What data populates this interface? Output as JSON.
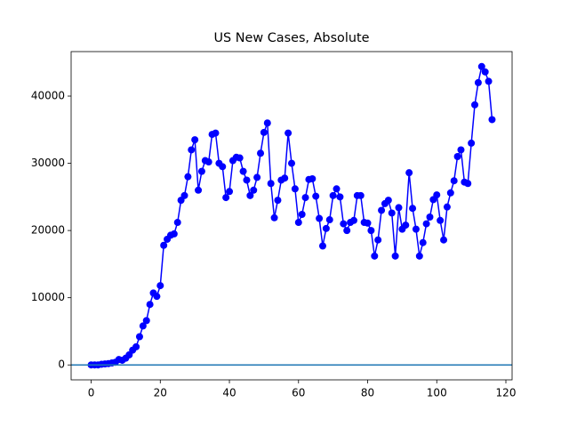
{
  "chart_data": {
    "type": "line",
    "title": "US New Cases, Absolute",
    "x": [
      0,
      1,
      2,
      3,
      4,
      5,
      6,
      7,
      8,
      9,
      10,
      11,
      12,
      13,
      14,
      15,
      16,
      17,
      18,
      19,
      20,
      21,
      22,
      23,
      24,
      25,
      26,
      27,
      28,
      29,
      30,
      31,
      32,
      33,
      34,
      35,
      36,
      37,
      38,
      39,
      40,
      41,
      42,
      43,
      44,
      45,
      46,
      47,
      48,
      49,
      50,
      51,
      52,
      53,
      54,
      55,
      56,
      57,
      58,
      59,
      60,
      61,
      62,
      63,
      64,
      65,
      66,
      67,
      68,
      69,
      70,
      71,
      72,
      73,
      74,
      75,
      76,
      77,
      78,
      79,
      80,
      81,
      82,
      83,
      84,
      85,
      86,
      87,
      88,
      89,
      90,
      91,
      92,
      93,
      94,
      95,
      96,
      97,
      98,
      99,
      100,
      101,
      102,
      103,
      104,
      105,
      106,
      107,
      108,
      109,
      110,
      111,
      112,
      113,
      114,
      115,
      116
    ],
    "series": [
      {
        "color": "#0000ff",
        "values": [
          0,
          0,
          0,
          100,
          150,
          200,
          300,
          400,
          800,
          700,
          1000,
          1500,
          2200,
          2700,
          4200,
          5800,
          6600,
          9000,
          10700,
          10200,
          11800,
          17800,
          18700,
          19300,
          19500,
          21200,
          24500,
          25200,
          28000,
          32000,
          33500,
          26000,
          28800,
          30400,
          30200,
          34300,
          34500,
          30000,
          29500,
          24900,
          25800,
          30400,
          30900,
          30800,
          28800,
          27500,
          25200,
          26000,
          27900,
          31500,
          34600,
          36000,
          27000,
          21900,
          24500,
          27500,
          27800,
          34500,
          30000,
          26200,
          21200,
          22400,
          24900,
          27600,
          27700,
          25100,
          21800,
          17700,
          20300,
          21600,
          25200,
          26200,
          25000,
          21000,
          20000,
          21200,
          21500,
          25200,
          25200,
          21200,
          21100,
          20000,
          16200,
          18600,
          23000,
          24000,
          24500,
          22600,
          16200,
          23400,
          20200,
          20800,
          28600,
          23300,
          20200,
          16200,
          18200,
          21000,
          22000,
          24600,
          25300,
          21500,
          18600,
          23500,
          25600,
          27400,
          31000,
          32000,
          27200,
          27000,
          33000,
          38700,
          42000,
          44400,
          43600,
          42200,
          36500
        ]
      }
    ],
    "hline": {
      "value": 0,
      "color": "#1f77b4"
    },
    "xlim": [
      -5.8,
      121.8
    ],
    "ylim": [
      -2220,
      46620
    ],
    "xticks": [
      0,
      20,
      40,
      60,
      80,
      100,
      120
    ],
    "yticks": [
      0,
      10000,
      20000,
      30000,
      40000
    ]
  }
}
